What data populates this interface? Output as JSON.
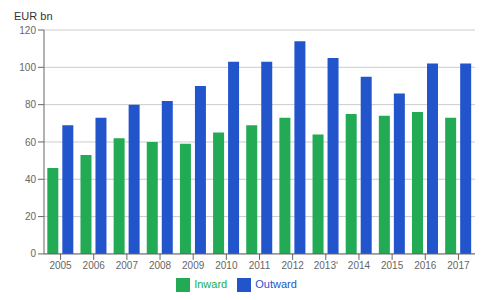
{
  "chart_data": {
    "type": "bar",
    "ylabel": "EUR bn",
    "categories": [
      "2005",
      "2006",
      "2007",
      "2008",
      "2009",
      "2010",
      "2011",
      "2012",
      "2013ʹ",
      "2014",
      "2015",
      "2016",
      "2017"
    ],
    "series": [
      {
        "name": "Inward",
        "color": "#22aa55",
        "values": [
          46,
          53,
          62,
          60,
          59,
          65,
          69,
          73,
          64,
          75,
          74,
          76,
          73
        ]
      },
      {
        "name": "Outward",
        "color": "#2255cc",
        "values": [
          69,
          73,
          80,
          82,
          90,
          103,
          103,
          114,
          105,
          95,
          86,
          102,
          102
        ]
      }
    ],
    "ylim": [
      0,
      120
    ],
    "yticks": [
      0,
      20,
      40,
      60,
      80,
      100,
      120
    ],
    "grid": true,
    "legend": "bottom"
  }
}
